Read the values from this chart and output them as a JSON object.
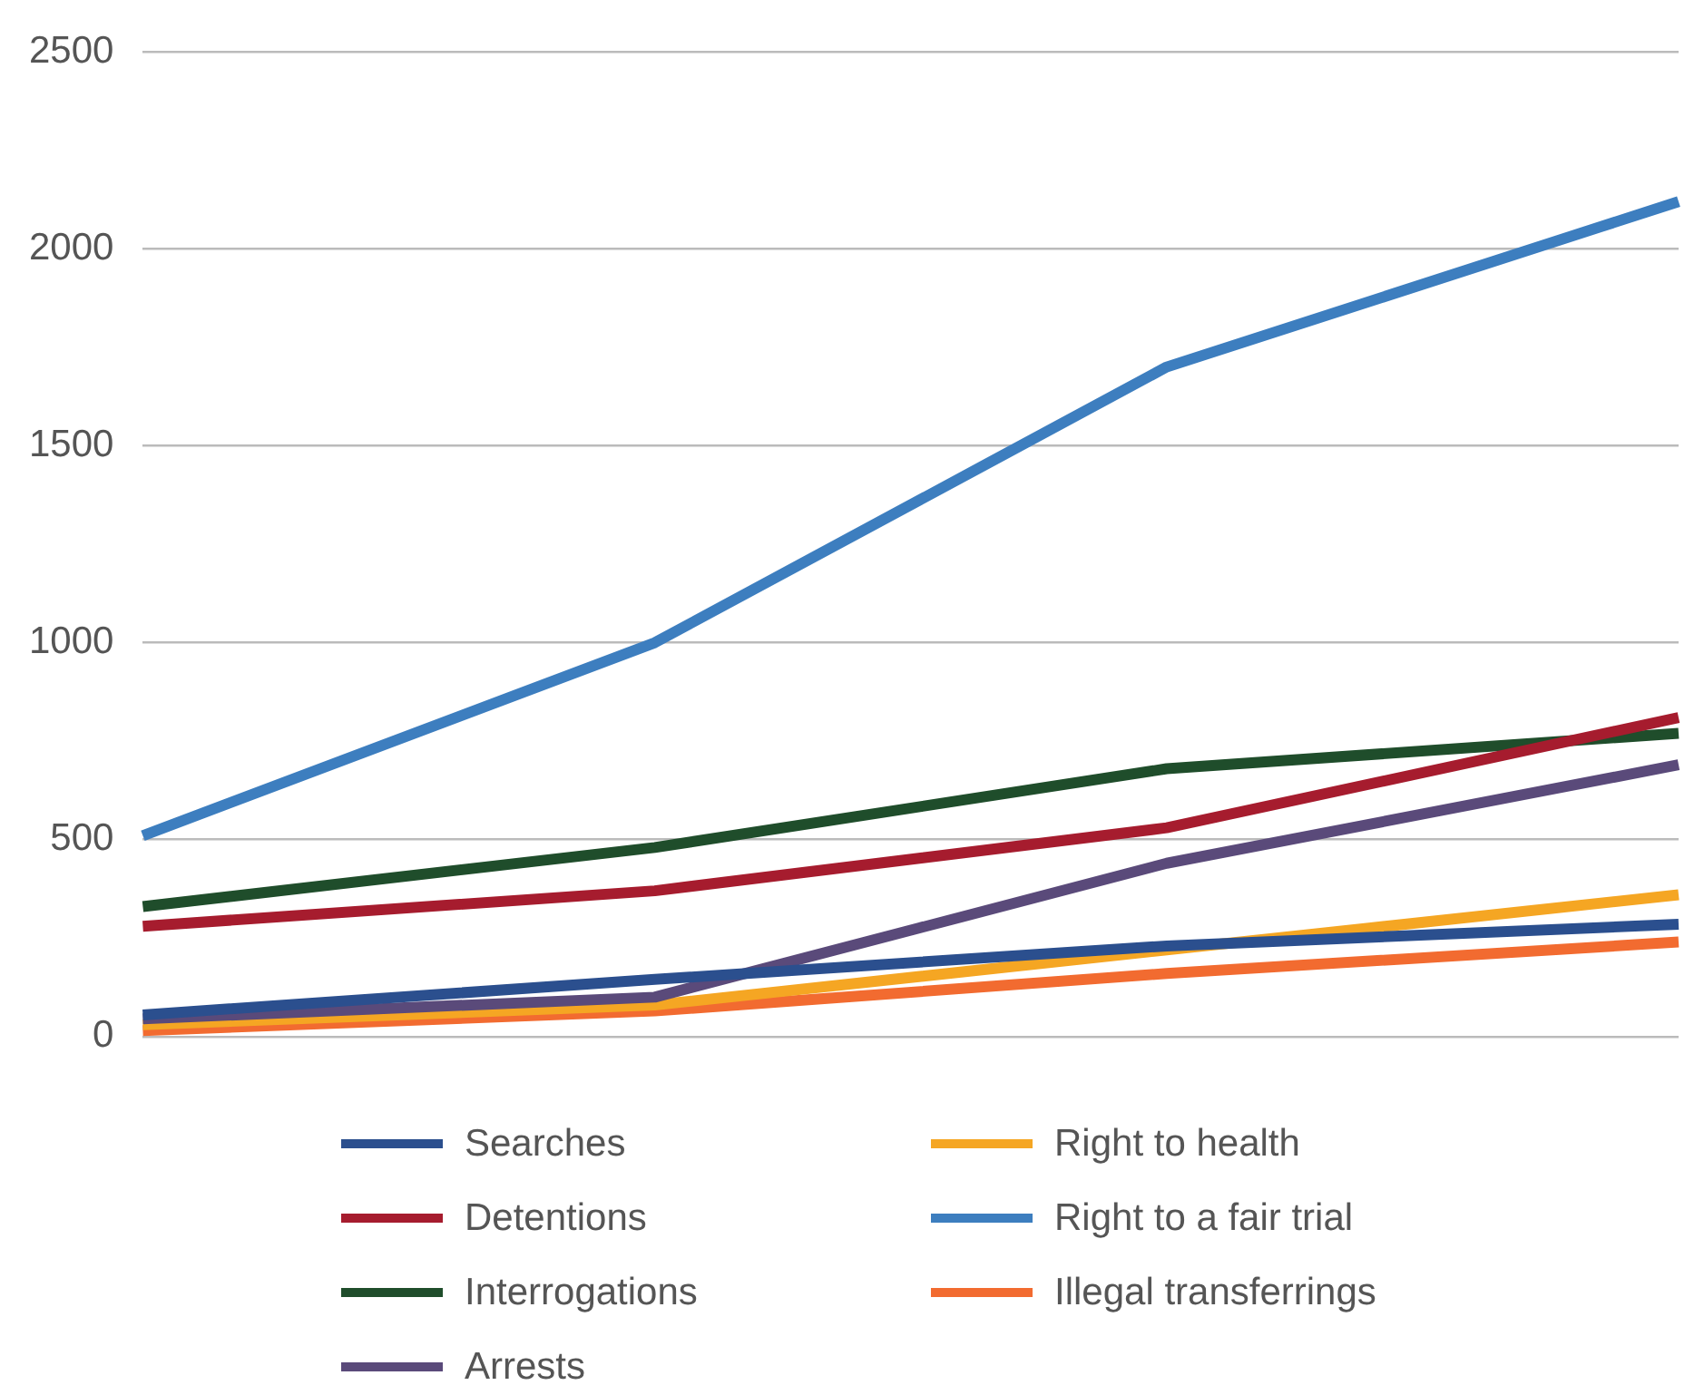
{
  "chart_data": {
    "type": "line",
    "categories": [
      null,
      null,
      null,
      null
    ],
    "series": [
      {
        "name": "Searches",
        "color": "#2b4f8e",
        "values": [
          55,
          145,
          230,
          285
        ]
      },
      {
        "name": "Detentions",
        "color": "#a61c2e",
        "values": [
          280,
          370,
          530,
          810
        ]
      },
      {
        "name": "Interrogations",
        "color": "#1f4d2b",
        "values": [
          330,
          480,
          680,
          770
        ]
      },
      {
        "name": "Arrests",
        "color": "#5a4a7a",
        "values": [
          45,
          100,
          440,
          690
        ]
      },
      {
        "name": "Right to health",
        "color": "#f5a623",
        "values": [
          30,
          80,
          220,
          360
        ]
      },
      {
        "name": "Right to a fair trial",
        "color": "#3d7ebf",
        "values": [
          510,
          1000,
          1700,
          2120
        ]
      },
      {
        "name": "Illegal transferrings",
        "color": "#f26b30",
        "values": [
          15,
          65,
          160,
          240
        ]
      }
    ],
    "ylim": [
      0,
      2500
    ],
    "yticks": [
      0,
      500,
      1000,
      1500,
      2000,
      2500
    ],
    "grid": "y",
    "legend": "bottom",
    "marker": "none",
    "line_style": "solid"
  }
}
